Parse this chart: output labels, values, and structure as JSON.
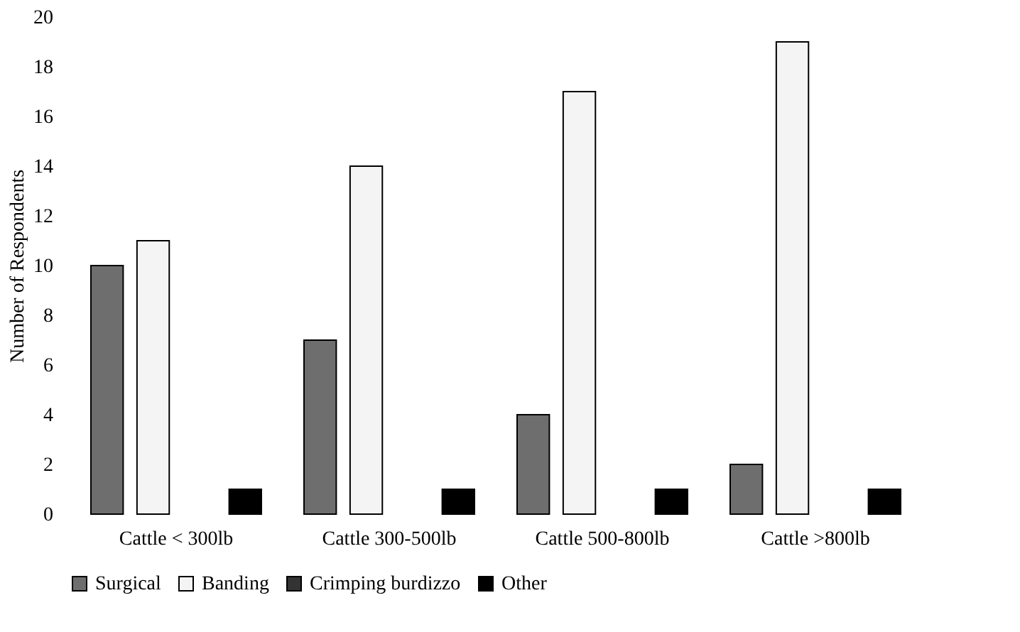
{
  "chart_data": {
    "type": "bar",
    "ylabel": "Number of Respondents",
    "categories": [
      "Cattle < 300lb",
      "Cattle 300-500lb",
      "Cattle 500-800lb",
      "Cattle >800lb"
    ],
    "series": [
      {
        "name": "Surgical",
        "color": "#6e6e6e",
        "values": [
          10,
          7,
          4,
          2
        ]
      },
      {
        "name": "Banding",
        "color": "#f4f4f4",
        "values": [
          11,
          14,
          17,
          19
        ]
      },
      {
        "name": "Crimping burdizzo",
        "color": "#333333",
        "values": [
          0,
          0,
          0,
          0
        ]
      },
      {
        "name": "Other",
        "color": "#000000",
        "values": [
          1,
          1,
          1,
          1
        ]
      }
    ],
    "ylim": [
      0,
      20
    ],
    "yticks": [
      0,
      2,
      4,
      6,
      8,
      10,
      12,
      14,
      16,
      18,
      20
    ],
    "grid": false,
    "legend": "bottom"
  }
}
